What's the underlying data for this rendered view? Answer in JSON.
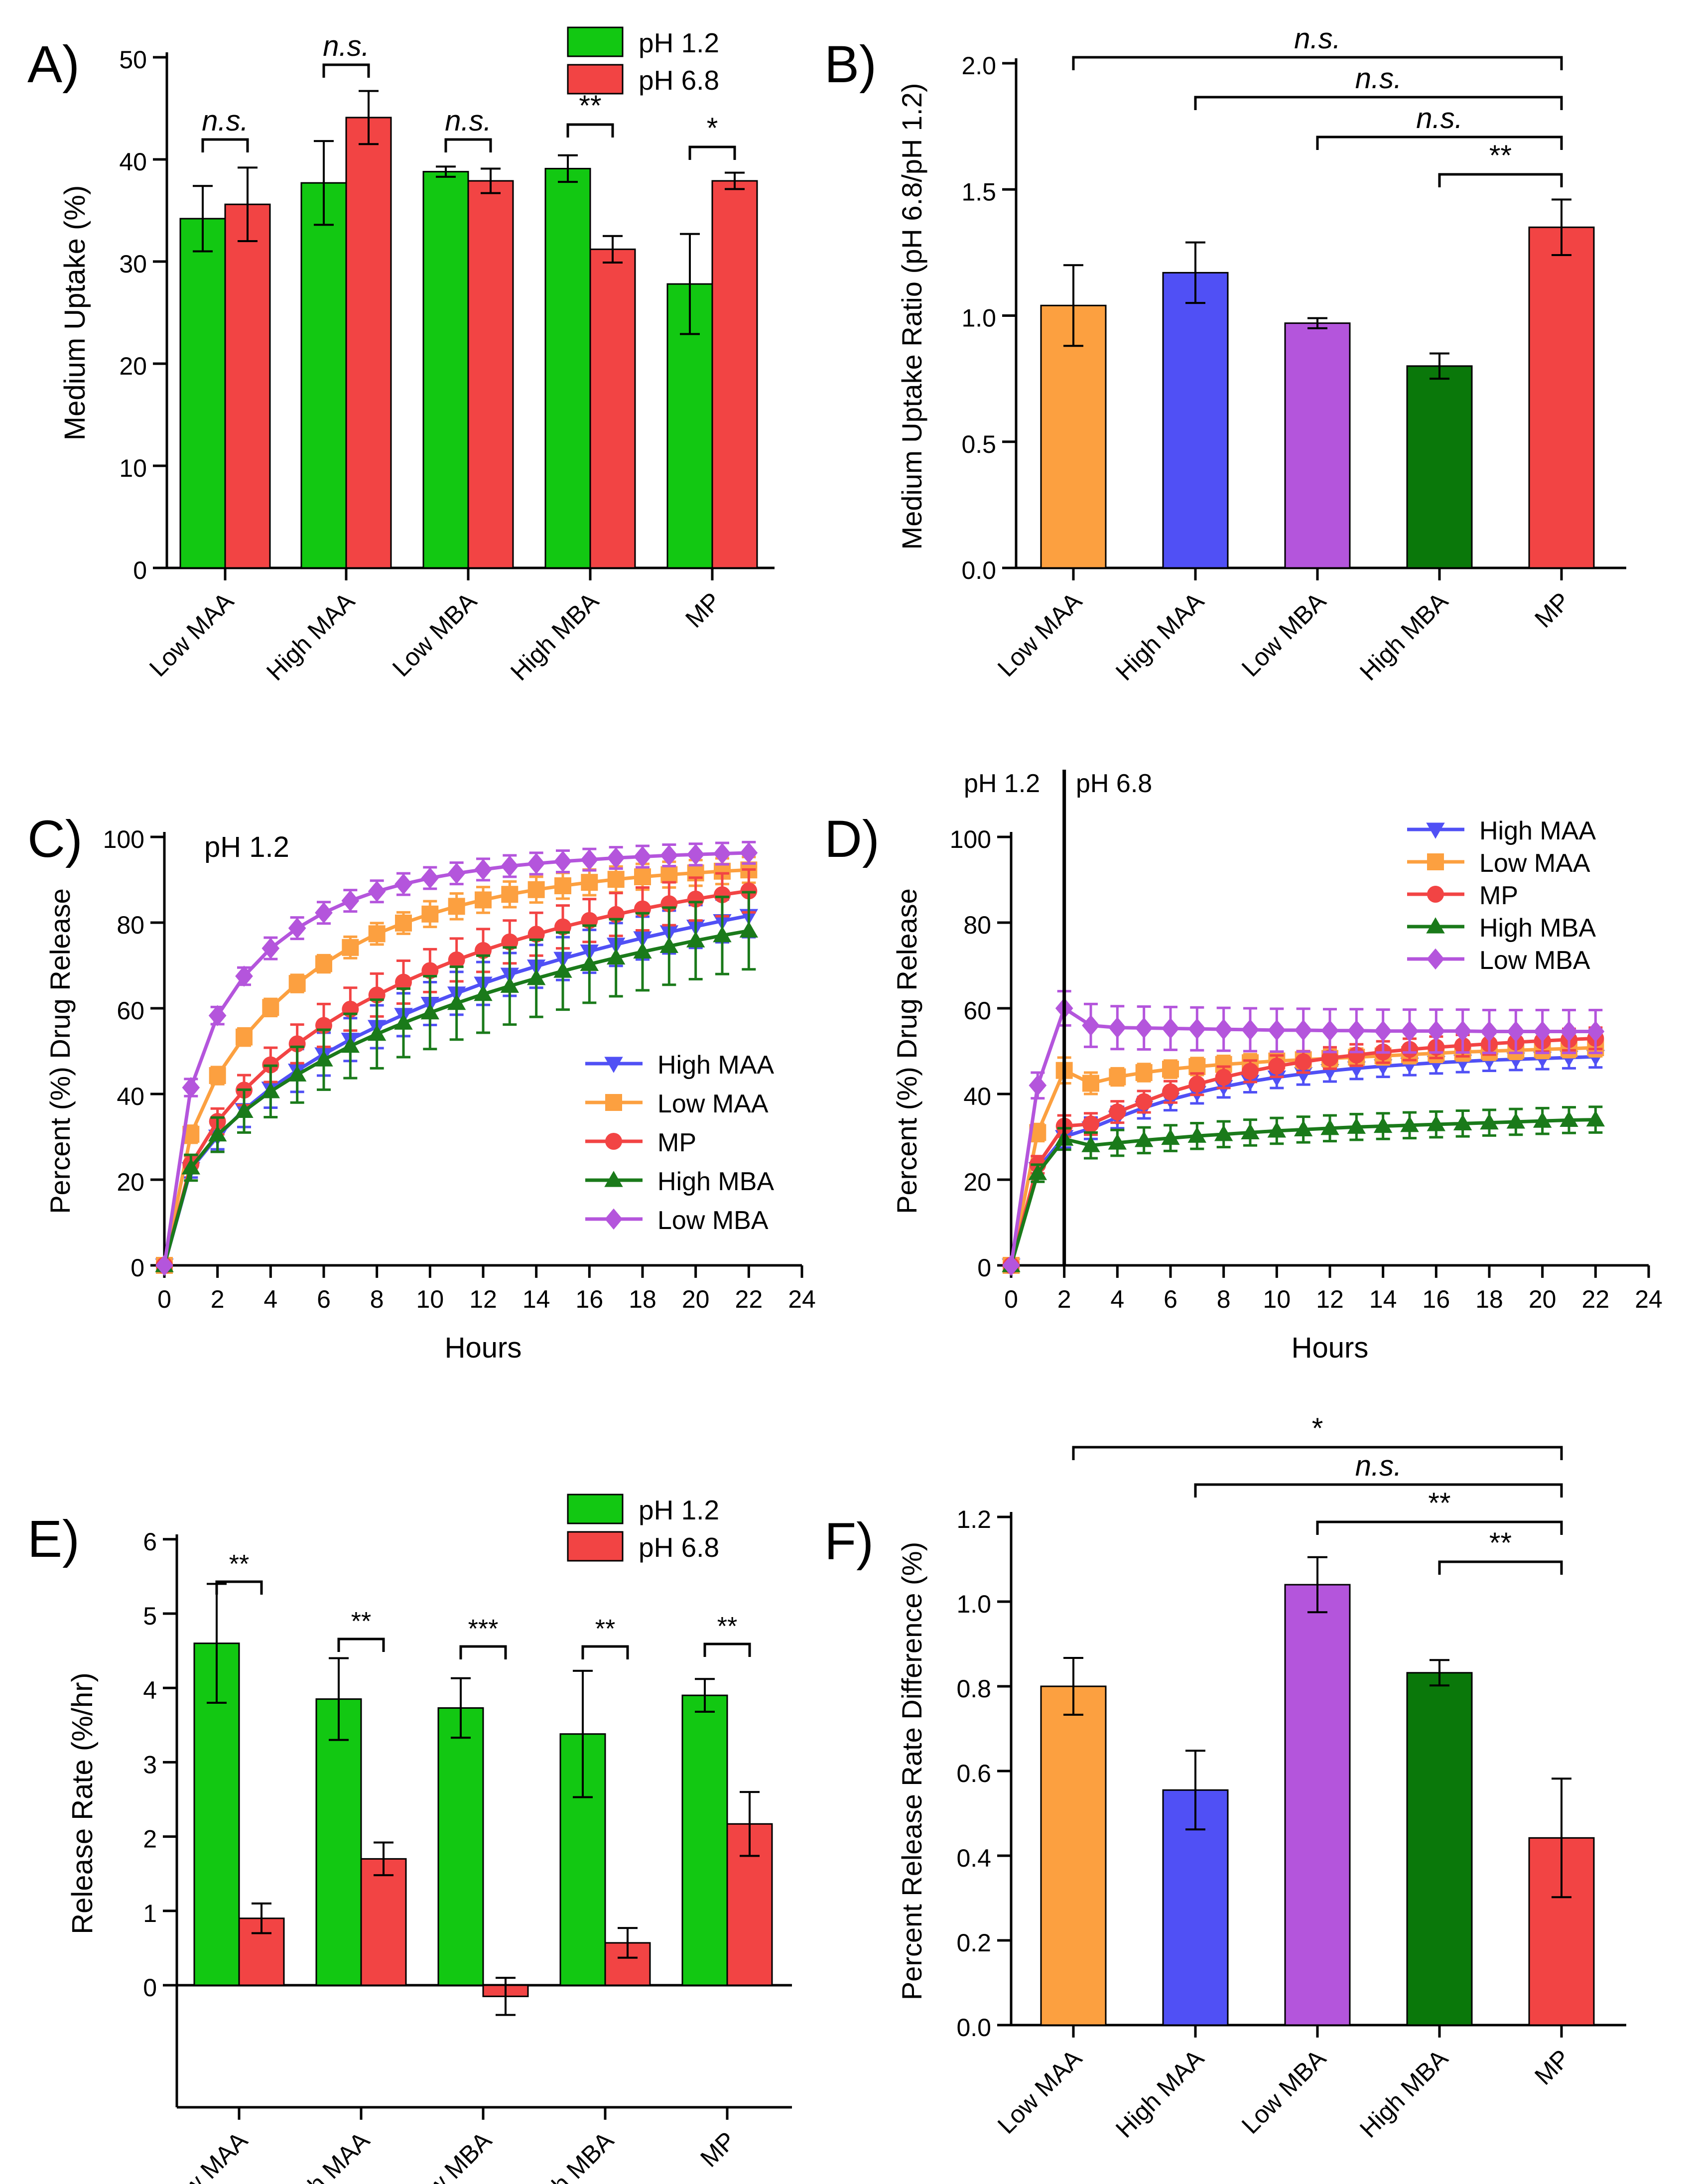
{
  "categories": [
    "Low MAA",
    "High MAA",
    "Low MBA",
    "High MBA",
    "MP"
  ],
  "colors": {
    "green": "#12C812",
    "red": "#F24444",
    "orange": "#FCA040",
    "blue": "#5050F5",
    "purple": "#B455DC",
    "darkgreen": "#0A780A",
    "lm_green": "#1A7A1A"
  },
  "chart_data": [
    {
      "id": "A",
      "panel_label": "A)",
      "type": "bar",
      "ylabel": "Medium Uptake (%)",
      "ylim": [
        0,
        50
      ],
      "yticks": [
        0,
        10,
        20,
        30,
        40,
        50
      ],
      "categories": [
        "Low MAA",
        "High MAA",
        "Low MBA",
        "High MBA",
        "MP"
      ],
      "series": [
        {
          "name": "pH 1.2",
          "values": [
            34.2,
            37.7,
            38.8,
            39.1,
            27.8
          ],
          "errors": [
            3.2,
            4.1,
            0.5,
            1.3,
            4.9
          ]
        },
        {
          "name": "pH 6.8",
          "values": [
            35.6,
            44.1,
            37.9,
            31.2,
            37.9
          ],
          "errors": [
            3.6,
            2.6,
            1.2,
            1.3,
            0.8
          ]
        }
      ],
      "legend": [
        "pH 1.2",
        "pH 6.8"
      ],
      "legend_position": "top-right",
      "significance": [
        "n.s.",
        "n.s.",
        "n.s.",
        "**",
        "*"
      ]
    },
    {
      "id": "B",
      "panel_label": "B)",
      "type": "bar",
      "ylabel": "Medium Uptake Ratio (pH 6.8/pH 1.2)",
      "ylim": [
        0,
        2
      ],
      "yticks": [
        "0.0",
        "0.5",
        "1.0",
        "1.5",
        "2.0"
      ],
      "categories": [
        "Low MAA",
        "High MAA",
        "Low MBA",
        "High MBA",
        "MP"
      ],
      "values": [
        1.04,
        1.17,
        0.97,
        0.8,
        1.35
      ],
      "errors": [
        0.16,
        0.12,
        0.02,
        0.05,
        0.11
      ],
      "significance": [
        "n.s.",
        "n.s.",
        "n.s.",
        "**"
      ]
    },
    {
      "id": "C",
      "panel_label": "C)",
      "type": "line",
      "annotation": "pH 1.2",
      "xlabel": "Hours",
      "ylabel": "Percent (%) Drug  Release",
      "xlim": [
        0,
        24
      ],
      "ylim": [
        0,
        100
      ],
      "xticks": [
        0,
        2,
        4,
        6,
        8,
        10,
        12,
        14,
        16,
        18,
        20,
        22,
        24
      ],
      "yticks": [
        0,
        20,
        40,
        60,
        80,
        100
      ],
      "x": [
        0,
        1,
        2,
        3,
        4,
        5,
        6,
        7,
        8,
        9,
        10,
        11,
        12,
        13,
        14,
        15,
        16,
        17,
        18,
        19,
        20,
        21,
        22
      ],
      "legend_position": "bottom-right",
      "series": [
        {
          "name": "High MAA",
          "values": [
            0,
            22.5,
            30.1,
            36.3,
            41.3,
            45.5,
            49.3,
            52.7,
            55.7,
            58.5,
            61.1,
            63.5,
            65.8,
            67.9,
            69.8,
            71.6,
            73.3,
            74.9,
            76.4,
            77.8,
            79.1,
            80.4,
            81.6
          ],
          "error": [
            0,
            2,
            3,
            4,
            4.5,
            5,
            5,
            5,
            5,
            5,
            5,
            5,
            5,
            5,
            5,
            5,
            5,
            5,
            5,
            5,
            5,
            5,
            5
          ]
        },
        {
          "name": "Low MAA",
          "values": [
            0,
            30.6,
            44.3,
            53.3,
            60.2,
            65.8,
            70.4,
            74.2,
            77.4,
            79.9,
            82.0,
            83.8,
            85.3,
            86.6,
            87.7,
            88.6,
            89.4,
            90.1,
            90.7,
            91.2,
            91.6,
            92.0,
            92.3
          ],
          "error": [
            0,
            2,
            2,
            2,
            2,
            2,
            2,
            2.5,
            2.5,
            2.5,
            3,
            3,
            3,
            3,
            3,
            3,
            3,
            3,
            3,
            3,
            3,
            3,
            3
          ]
        },
        {
          "name": "MP",
          "values": [
            0,
            23.6,
            33.6,
            40.9,
            46.8,
            51.7,
            56.0,
            59.8,
            63.1,
            66.1,
            68.8,
            71.3,
            73.5,
            75.5,
            77.3,
            79.0,
            80.5,
            81.9,
            83.2,
            84.4,
            85.5,
            86.5,
            87.4
          ],
          "error": [
            0,
            2,
            3,
            3.5,
            4,
            4.5,
            5,
            5,
            5,
            5,
            5,
            5,
            5,
            5,
            5,
            5,
            5,
            5,
            5,
            5,
            5,
            5,
            5
          ]
        },
        {
          "name": "High MBA",
          "values": [
            0,
            22.8,
            30.5,
            36.0,
            40.6,
            44.5,
            48.0,
            51.2,
            54.0,
            56.6,
            59.0,
            61.2,
            63.3,
            65.2,
            67.0,
            68.7,
            70.3,
            71.8,
            73.2,
            74.5,
            75.8,
            77.0,
            78.1
          ],
          "error": [
            0,
            3,
            4,
            5,
            6,
            6.5,
            7,
            7.5,
            8,
            8,
            8.5,
            8.5,
            9,
            9,
            9,
            9,
            9,
            9,
            9,
            9,
            9,
            9,
            9
          ]
        },
        {
          "name": "Low MBA",
          "values": [
            0,
            41.5,
            58.3,
            67.5,
            74.0,
            78.7,
            82.3,
            85.1,
            87.3,
            89.0,
            90.4,
            91.5,
            92.4,
            93.2,
            93.8,
            94.3,
            94.7,
            95.1,
            95.4,
            95.7,
            95.9,
            96.1,
            96.3
          ],
          "error": [
            0,
            2,
            2,
            2,
            2.5,
            2.5,
            2.5,
            2.5,
            2.5,
            2.5,
            2.5,
            2.5,
            2.5,
            2.5,
            2.5,
            2.5,
            2.5,
            2.5,
            2.5,
            2.5,
            2.5,
            2.5,
            2.5
          ]
        }
      ]
    },
    {
      "id": "D",
      "panel_label": "D)",
      "type": "line",
      "annotations": [
        "pH 1.2",
        "pH 6.8"
      ],
      "divider_x": 2,
      "xlabel": "Hours",
      "ylabel": "Percent (%) Drug  Release",
      "xlim": [
        0,
        24
      ],
      "ylim": [
        0,
        100
      ],
      "xticks": [
        0,
        2,
        4,
        6,
        8,
        10,
        12,
        14,
        16,
        18,
        20,
        22,
        24
      ],
      "yticks": [
        0,
        20,
        40,
        60,
        80,
        100
      ],
      "x": [
        0,
        1,
        2,
        3,
        4,
        5,
        6,
        7,
        8,
        9,
        10,
        11,
        12,
        13,
        14,
        15,
        16,
        17,
        18,
        19,
        20,
        21,
        22
      ],
      "legend_position": "top-right",
      "series": [
        {
          "name": "High MAA",
          "values": [
            0,
            22.5,
            30.0,
            32.0,
            34.5,
            36.8,
            38.7,
            40.3,
            41.7,
            42.9,
            43.9,
            44.7,
            45.4,
            46.0,
            46.5,
            46.9,
            47.3,
            47.6,
            47.9,
            48.1,
            48.3,
            48.5,
            48.7
          ],
          "error": [
            0,
            2,
            2.5,
            2.5,
            2.5,
            2.5,
            2.5,
            2.5,
            2.5,
            2.5,
            2.5,
            2.5,
            2.5,
            2.5,
            2.5,
            2.5,
            2.5,
            2.5,
            2.5,
            2.5,
            2.5,
            2.5,
            2.5
          ]
        },
        {
          "name": "Low MAA",
          "values": [
            0,
            31.0,
            45.5,
            42.5,
            44.0,
            45.0,
            45.8,
            46.4,
            46.9,
            47.3,
            47.7,
            48.0,
            48.3,
            48.6,
            48.9,
            49.2,
            49.5,
            49.8,
            50.0,
            50.2,
            50.4,
            50.6,
            50.8
          ],
          "error": [
            0,
            2,
            3,
            2.5,
            2,
            2,
            2,
            2,
            2,
            2,
            2,
            2,
            2,
            2,
            2,
            2,
            2,
            2,
            2,
            2,
            2,
            2,
            2
          ]
        },
        {
          "name": "MP",
          "values": [
            0,
            23.5,
            32.5,
            33.0,
            35.8,
            38.2,
            40.5,
            42.3,
            43.9,
            45.3,
            46.5,
            47.5,
            48.4,
            49.1,
            49.8,
            50.4,
            50.9,
            51.3,
            51.7,
            52.1,
            52.4,
            52.7,
            53.0
          ],
          "error": [
            0,
            2,
            2.5,
            2.5,
            2.5,
            2.5,
            2.5,
            2.5,
            2.5,
            2.5,
            2.5,
            2.5,
            2.5,
            2.5,
            2.5,
            2.5,
            2.5,
            2.5,
            2.5,
            2.5,
            2.5,
            2.5,
            2.5
          ]
        },
        {
          "name": "High MBA",
          "values": [
            0,
            21.5,
            29.5,
            28.0,
            28.6,
            29.2,
            29.7,
            30.2,
            30.6,
            31.0,
            31.4,
            31.7,
            32.0,
            32.3,
            32.5,
            32.7,
            32.9,
            33.1,
            33.3,
            33.5,
            33.7,
            33.9,
            34.0
          ],
          "error": [
            0,
            2,
            2.5,
            3,
            3,
            3,
            3,
            3,
            3,
            3,
            3,
            3,
            3,
            3,
            3,
            3,
            3,
            3,
            3,
            3,
            3,
            3,
            3
          ]
        },
        {
          "name": "Low MBA",
          "values": [
            0,
            42.0,
            60.0,
            56.0,
            55.5,
            55.4,
            55.3,
            55.2,
            55.1,
            55.0,
            54.9,
            54.9,
            54.8,
            54.8,
            54.7,
            54.7,
            54.7,
            54.7,
            54.6,
            54.6,
            54.6,
            54.6,
            54.6
          ],
          "error": [
            0,
            3,
            4,
            5,
            5,
            5,
            5,
            5,
            5,
            5,
            5,
            5,
            5,
            5,
            5,
            5,
            5,
            5,
            5,
            5,
            5,
            5,
            5
          ]
        }
      ]
    },
    {
      "id": "E",
      "panel_label": "E)",
      "type": "bar",
      "ylabel": "Release Rate (%/hr)",
      "ylim": [
        -0.5,
        6
      ],
      "yticks": [
        0,
        1,
        2,
        3,
        4,
        5,
        6
      ],
      "categories": [
        "Low MAA",
        "High MAA",
        "Low MBA",
        "High MBA",
        "MP"
      ],
      "series": [
        {
          "name": "pH 1.2",
          "values": [
            4.6,
            3.85,
            3.73,
            3.38,
            3.9
          ],
          "errors": [
            0.8,
            0.55,
            0.4,
            0.85,
            0.22
          ]
        },
        {
          "name": "pH 6.8",
          "values": [
            0.9,
            1.7,
            -0.15,
            0.57,
            2.17
          ],
          "errors": [
            0.2,
            0.22,
            0.25,
            0.2,
            0.43
          ]
        }
      ],
      "legend": [
        "pH 1.2",
        "pH 6.8"
      ],
      "legend_position": "top-right",
      "significance": [
        "**",
        "**",
        "***",
        "**",
        "**"
      ]
    },
    {
      "id": "F",
      "panel_label": "F)",
      "type": "bar",
      "ylabel": "Percent Release Rate Difference (%)",
      "ylim": [
        0,
        1.2
      ],
      "yticks": [
        "0.0",
        "0.2",
        "0.4",
        "0.6",
        "0.8",
        "1.0",
        "1.2"
      ],
      "categories": [
        "Low MAA",
        "High MAA",
        "Low MBA",
        "High MBA",
        "MP"
      ],
      "values": [
        0.8,
        0.555,
        1.04,
        0.832,
        0.442
      ],
      "errors": [
        0.067,
        0.093,
        0.065,
        0.03,
        0.14
      ],
      "significance": [
        "*",
        "n.s.",
        "**",
        "**"
      ]
    }
  ]
}
